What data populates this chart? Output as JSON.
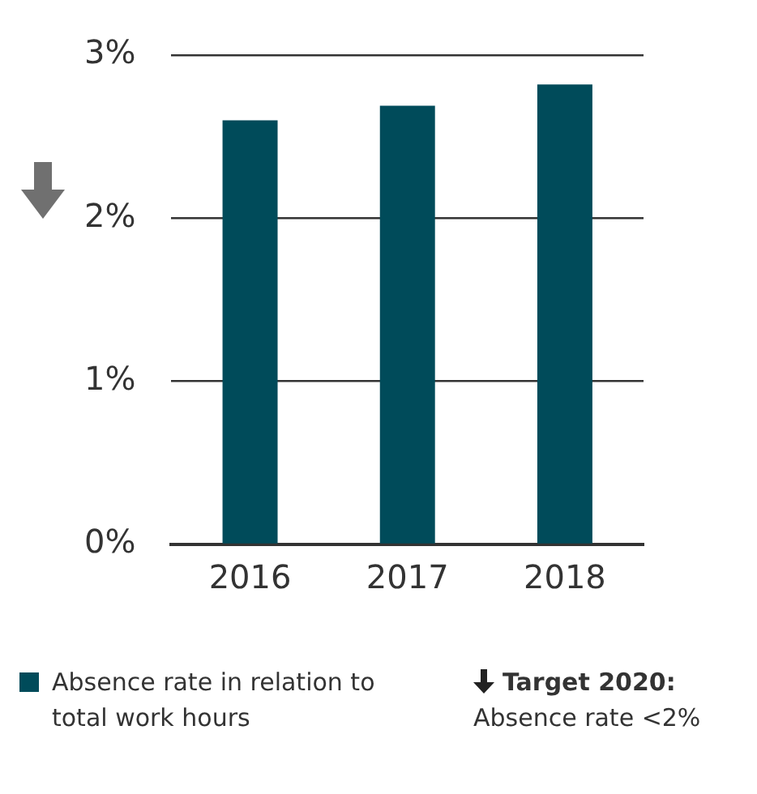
{
  "chart_data": {
    "type": "bar",
    "categories": [
      "2016",
      "2017",
      "2018"
    ],
    "series": [
      {
        "name": "Absence rate in relation to total work hours",
        "color": "#004b5a",
        "values": [
          2.6,
          2.69,
          2.82
        ]
      }
    ],
    "ylim": [
      0,
      3
    ],
    "yticks": [
      {
        "value": 0,
        "label": "0%"
      },
      {
        "value": 1,
        "label": "1%"
      },
      {
        "value": 2,
        "label": "2%"
      },
      {
        "value": 3,
        "label": "3%"
      }
    ],
    "grid": "y",
    "legend": "bottom",
    "annotations": [
      "Target 2020:",
      "Absence rate <2%"
    ]
  }
}
